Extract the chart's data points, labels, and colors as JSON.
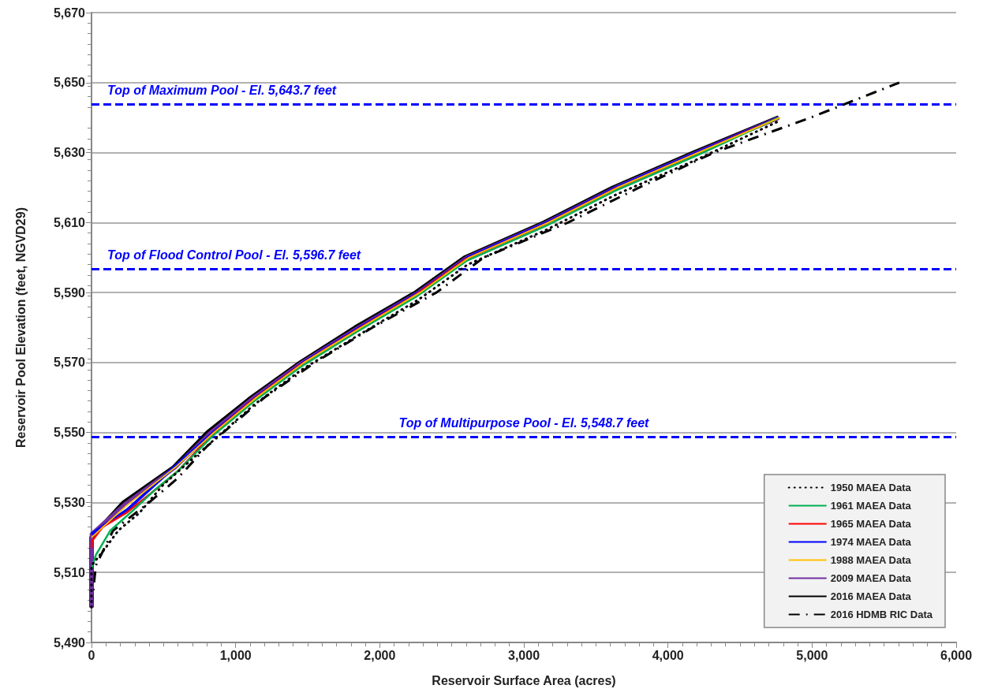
{
  "chart_data": {
    "type": "line",
    "xlabel": "Reservoir Surface Area (acres)",
    "ylabel": "Reservoir Pool Elevation (feet, NGVD29)",
    "xlim": [
      0,
      6000
    ],
    "xticks": [
      0,
      {
        "value": 1000,
        "label": "1,000"
      },
      {
        "value": 2000,
        "label": "2,000"
      },
      {
        "value": 3000,
        "label": "3,000"
      },
      {
        "value": 4000,
        "label": "4,000"
      },
      {
        "value": 5000,
        "label": "5,000"
      },
      {
        "value": 6000,
        "label": "6,000"
      }
    ],
    "ylim": [
      5490,
      5670
    ],
    "yticks": [
      {
        "value": 5490,
        "label": "5,490"
      },
      {
        "value": 5510,
        "label": "5,510"
      },
      {
        "value": 5530,
        "label": "5,530"
      },
      {
        "value": 5550,
        "label": "5,550"
      },
      {
        "value": 5570,
        "label": "5,570"
      },
      {
        "value": 5590,
        "label": "5,590"
      },
      {
        "value": 5610,
        "label": "5,610"
      },
      {
        "value": 5630,
        "label": "5,630"
      },
      {
        "value": 5650,
        "label": "5,650"
      },
      {
        "value": 5670,
        "label": "5,670"
      }
    ],
    "grid": "y",
    "legend": "bottom right",
    "marker": "none",
    "series": [
      {
        "name": "1950 MAEA Data",
        "color": "#000000",
        "line_style": "dotted",
        "x": [
          0,
          0,
          86,
          186,
          332,
          496,
          660,
          825,
          1130,
          1460,
          1860,
          2270,
          2610,
          3160,
          3640,
          4200,
          4770
        ],
        "values": [
          5500,
          5512,
          5516.4,
          5522,
          5527,
          5535,
          5541,
          5547,
          5558,
          5568,
          5578,
          5588,
          5598,
          5608,
          5618,
          5628,
          5639
        ]
      },
      {
        "name": "1961 MAEA Data",
        "color": "#00b050",
        "x": [
          0,
          30,
          131,
          295,
          450,
          600,
          840,
          1130,
          1460,
          1850,
          2260,
          2600,
          3150,
          3630,
          4190,
          4770
        ],
        "values": [
          5511,
          5515,
          5522,
          5528,
          5534,
          5539,
          5549,
          5559,
          5569,
          5579,
          5589,
          5599,
          5609,
          5619,
          5629,
          5640
        ]
      },
      {
        "name": "1965 MAEA Data",
        "color": "#ff0000",
        "x": [
          0,
          4,
          77,
          241,
          515,
          600,
          835,
          1125,
          1455,
          1845,
          2255,
          2595,
          3145,
          3625,
          4185,
          4770
        ],
        "values": [
          5517,
          5519,
          5523,
          5527,
          5536,
          5539,
          5549.5,
          5559.5,
          5569.5,
          5579.5,
          5589.5,
          5599.5,
          5609.5,
          5619.5,
          5629.5,
          5640
        ]
      },
      {
        "name": "1974 MAEA Data",
        "color": "#0000ff",
        "x": [
          0,
          250,
          570,
          845,
          1140,
          1470,
          1860,
          2270,
          2610,
          3160,
          3640,
          4200,
          4770
        ],
        "values": [
          5521,
          5528,
          5540,
          5550,
          5560,
          5570,
          5580,
          5590,
          5600,
          5610,
          5620,
          5630,
          5640
        ]
      },
      {
        "name": "1988 MAEA Data",
        "color": "#ffc000",
        "x": [
          0,
          240,
          580,
          850,
          1145,
          1475,
          1870,
          2280,
          2620,
          3170,
          3650,
          4210,
          4780
        ],
        "values": [
          5520,
          5529,
          5540,
          5550,
          5560,
          5570,
          5580,
          5590,
          5600,
          5610,
          5620,
          5630,
          5640
        ]
      },
      {
        "name": "2009 MAEA Data",
        "color": "#7030a0",
        "x": [
          0,
          0,
          230,
          580,
          825,
          1125,
          1460,
          1850,
          2265,
          2605,
          3155,
          3635,
          4195,
          4770
        ],
        "values": [
          5500,
          5521,
          5529.5,
          5540,
          5550,
          5560,
          5570,
          5580,
          5590,
          5600,
          5610,
          5620,
          5630,
          5640
        ]
      },
      {
        "name": "2016 MAEA Data",
        "color": "#000000",
        "x": [
          0,
          0,
          223,
          570,
          805,
          1110,
          1450,
          1830,
          2250,
          2590,
          3142,
          3620,
          4180,
          4767
        ],
        "values": [
          5500,
          5520,
          5530,
          5540,
          5550,
          5560,
          5570,
          5580,
          5590,
          5600,
          5610,
          5620,
          5630,
          5640
        ]
      },
      {
        "name": "2016 HDMB RIC Data",
        "color": "#000000",
        "line_style": "dashdot",
        "x": [
          0,
          30,
          150,
          400,
          600,
          800,
          1000,
          1200,
          1550,
          1950,
          2393,
          2722,
          3306,
          3800,
          4320,
          4990,
          5605
        ],
        "values": [
          5500,
          5512,
          5522,
          5530,
          5537,
          5546,
          5553,
          5560,
          5570,
          5580,
          5590,
          5600,
          5610,
          5620,
          5630,
          5640,
          5650
        ]
      }
    ],
    "ref_lines": [
      {
        "axis": "y",
        "value": 5643.7,
        "label": "Top of Maximum Pool - El. 5,643.7 feet",
        "color": "#0000ff",
        "line_style": "dashed"
      },
      {
        "axis": "y",
        "value": 5596.7,
        "label": "Top of Flood Control Pool - El. 5,596.7 feet",
        "color": "#0000ff",
        "line_style": "dashed"
      },
      {
        "axis": "y",
        "value": 5548.7,
        "label": "Top of Multipurpose Pool - El. 5,548.7 feet",
        "color": "#0000ff",
        "line_style": "dashed"
      }
    ]
  }
}
